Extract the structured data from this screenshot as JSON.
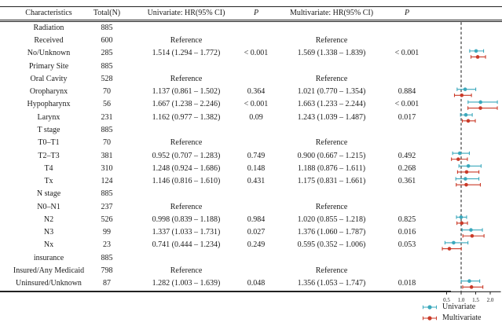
{
  "table": {
    "headers": [
      "Characteristics",
      "Total(N)",
      "Univariate: HR(95% CI)",
      "P",
      "Multivariate: HR(95% CI)",
      "P"
    ],
    "rows": [
      {
        "label": "Radiation",
        "n": "885",
        "uni": "",
        "p1": "",
        "multi": "",
        "p2": ""
      },
      {
        "label": "Received",
        "n": "600",
        "uni": "Reference",
        "p1": "",
        "multi": "Reference",
        "p2": ""
      },
      {
        "label": "No/Unknown",
        "n": "285",
        "uni": "1.514 (1.294 – 1.772)",
        "p1": "< 0.001",
        "multi": "1.569 (1.338 – 1.839)",
        "p2": "< 0.001"
      },
      {
        "label": "Primary Site",
        "n": "885",
        "uni": "",
        "p1": "",
        "multi": "",
        "p2": ""
      },
      {
        "label": "Oral Cavity",
        "n": "528",
        "uni": "Reference",
        "p1": "",
        "multi": "Reference",
        "p2": ""
      },
      {
        "label": "Oropharynx",
        "n": "70",
        "uni": "1.137 (0.861 – 1.502)",
        "p1": "0.364",
        "multi": "1.021 (0.770 – 1.354)",
        "p2": "0.884"
      },
      {
        "label": "Hypopharynx",
        "n": "56",
        "uni": "1.667 (1.238 – 2.246)",
        "p1": "< 0.001",
        "multi": "1.663 (1.233 – 2.244)",
        "p2": "< 0.001"
      },
      {
        "label": "Larynx",
        "n": "231",
        "uni": "1.162 (0.977 – 1.382)",
        "p1": "0.09",
        "multi": "1.243 (1.039 – 1.487)",
        "p2": "0.017"
      },
      {
        "label": "T stage",
        "n": "885",
        "uni": "",
        "p1": "",
        "multi": "",
        "p2": ""
      },
      {
        "label": "T0–T1",
        "n": "70",
        "uni": "Reference",
        "p1": "",
        "multi": "Reference",
        "p2": ""
      },
      {
        "label": "T2–T3",
        "n": "381",
        "uni": "0.952 (0.707 – 1.283)",
        "p1": "0.749",
        "multi": "0.900 (0.667 – 1.215)",
        "p2": "0.492"
      },
      {
        "label": "T4",
        "n": "310",
        "uni": "1.248 (0.924 – 1.686)",
        "p1": "0.148",
        "multi": "1.188 (0.876 – 1.611)",
        "p2": "0.268"
      },
      {
        "label": "Tx",
        "n": "124",
        "uni": "1.146 (0.816 – 1.610)",
        "p1": "0.431",
        "multi": "1.175 (0.831 – 1.661)",
        "p2": "0.361"
      },
      {
        "label": "N stage",
        "n": "885",
        "uni": "",
        "p1": "",
        "multi": "",
        "p2": ""
      },
      {
        "label": "N0–N1",
        "n": "237",
        "uni": "Reference",
        "p1": "",
        "multi": "Reference",
        "p2": ""
      },
      {
        "label": "N2",
        "n": "526",
        "uni": "0.998 (0.839 – 1.188)",
        "p1": "0.984",
        "multi": "1.020 (0.855 – 1.218)",
        "p2": "0.825"
      },
      {
        "label": "N3",
        "n": "99",
        "uni": "1.337 (1.033 – 1.731)",
        "p1": "0.027",
        "multi": "1.376 (1.060 – 1.787)",
        "p2": "0.016"
      },
      {
        "label": "Nx",
        "n": "23",
        "uni": "0.741 (0.444 – 1.234)",
        "p1": "0.249",
        "multi": "0.595 (0.352 – 1.006)",
        "p2": "0.053"
      },
      {
        "label": "insurance",
        "n": "885",
        "uni": "",
        "p1": "",
        "multi": "",
        "p2": ""
      },
      {
        "label": "Insured/Any Medicaid",
        "n": "798",
        "uni": "Reference",
        "p1": "",
        "multi": "Reference",
        "p2": ""
      },
      {
        "label": "Uninsured/Unknown",
        "n": "87",
        "uni": "1.282 (1.003 – 1.639)",
        "p1": "0.048",
        "multi": "1.356 (1.053 – 1.747)",
        "p2": "0.018"
      }
    ]
  },
  "chart_data": {
    "type": "scatter",
    "subtype": "forest-plot",
    "x_axis": {
      "ticks": [
        0.5,
        1.0,
        1.5,
        2.0
      ],
      "tick_labels": [
        "0.5",
        "1.0",
        "1.5",
        "2.0"
      ],
      "range": [
        0.3,
        2.35
      ],
      "reference_line": 1.0
    },
    "series": [
      {
        "name": "Univariate",
        "color": "#3aa8bc",
        "points": [
          {
            "row": 2,
            "label": "No/Unknown",
            "hr": 1.514,
            "lo": 1.294,
            "hi": 1.772
          },
          {
            "row": 5,
            "label": "Oropharynx",
            "hr": 1.137,
            "lo": 0.861,
            "hi": 1.502
          },
          {
            "row": 6,
            "label": "Hypopharynx",
            "hr": 1.667,
            "lo": 1.238,
            "hi": 2.246
          },
          {
            "row": 7,
            "label": "Larynx",
            "hr": 1.162,
            "lo": 0.977,
            "hi": 1.382
          },
          {
            "row": 10,
            "label": "T2–T3",
            "hr": 0.952,
            "lo": 0.707,
            "hi": 1.283
          },
          {
            "row": 11,
            "label": "T4",
            "hr": 1.248,
            "lo": 0.924,
            "hi": 1.686
          },
          {
            "row": 12,
            "label": "Tx",
            "hr": 1.146,
            "lo": 0.816,
            "hi": 1.61
          },
          {
            "row": 15,
            "label": "N2",
            "hr": 0.998,
            "lo": 0.839,
            "hi": 1.188
          },
          {
            "row": 16,
            "label": "N3",
            "hr": 1.337,
            "lo": 1.033,
            "hi": 1.731
          },
          {
            "row": 17,
            "label": "Nx",
            "hr": 0.741,
            "lo": 0.444,
            "hi": 1.234
          },
          {
            "row": 20,
            "label": "Uninsured/Unknown",
            "hr": 1.282,
            "lo": 1.003,
            "hi": 1.639
          }
        ]
      },
      {
        "name": "Multivariate",
        "color": "#ca3a28",
        "points": [
          {
            "row": 2,
            "label": "No/Unknown",
            "hr": 1.569,
            "lo": 1.338,
            "hi": 1.839
          },
          {
            "row": 5,
            "label": "Oropharynx",
            "hr": 1.021,
            "lo": 0.77,
            "hi": 1.354
          },
          {
            "row": 6,
            "label": "Hypopharynx",
            "hr": 1.663,
            "lo": 1.233,
            "hi": 2.244
          },
          {
            "row": 7,
            "label": "Larynx",
            "hr": 1.243,
            "lo": 1.039,
            "hi": 1.487
          },
          {
            "row": 10,
            "label": "T2–T3",
            "hr": 0.9,
            "lo": 0.667,
            "hi": 1.215
          },
          {
            "row": 11,
            "label": "T4",
            "hr": 1.188,
            "lo": 0.876,
            "hi": 1.611
          },
          {
            "row": 12,
            "label": "Tx",
            "hr": 1.175,
            "lo": 0.831,
            "hi": 1.661
          },
          {
            "row": 15,
            "label": "N2",
            "hr": 1.02,
            "lo": 0.855,
            "hi": 1.218
          },
          {
            "row": 16,
            "label": "N3",
            "hr": 1.376,
            "lo": 1.06,
            "hi": 1.787
          },
          {
            "row": 17,
            "label": "Nx",
            "hr": 0.595,
            "lo": 0.352,
            "hi": 1.006
          },
          {
            "row": 20,
            "label": "Uninsured/Unknown",
            "hr": 1.356,
            "lo": 1.053,
            "hi": 1.747
          }
        ]
      }
    ]
  },
  "legend": [
    {
      "label": "Univariate",
      "color": "#3aa8bc"
    },
    {
      "label": "Multivariate",
      "color": "#ca3a28"
    }
  ],
  "colors": {
    "text": "#1b1b1b",
    "rule": "#222222",
    "reference_line": "#2a2a2a"
  }
}
